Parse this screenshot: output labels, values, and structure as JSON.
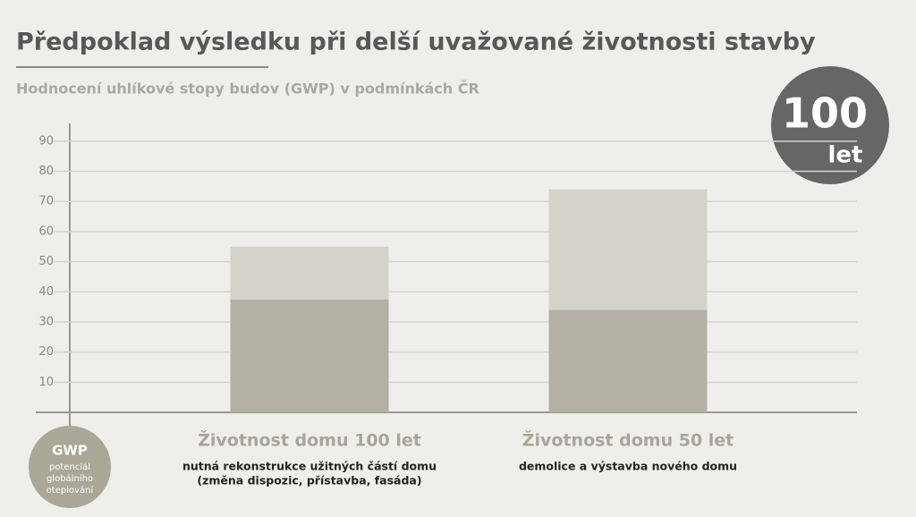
{
  "chart_data": {
    "type": "stacked-bar",
    "title": "Předpoklad výsledku při delší uvažované životnosti stavby",
    "subtitle": "Hodnocení uhlíkové stopy budov (GWP) v podmínkách ČR",
    "badge": {
      "number": "100",
      "unit": "let"
    },
    "axis_badge": {
      "label": "GWP",
      "description": [
        "potenciál",
        "globálního",
        "oteplování"
      ]
    },
    "categories": [
      "Životnost domu 100 let",
      "Životnost domu 50 let"
    ],
    "category_notes": [
      [
        "nutná rekonstrukce užitných částí domu",
        "(změna dispozic, přístavba, fasáda)"
      ],
      [
        "demolice a výstavba nového domu"
      ]
    ],
    "series": [
      {
        "color": "#b4b1a4",
        "values": [
          37.5,
          34
        ]
      },
      {
        "color": "#d4d2cb",
        "values": [
          17.5,
          40
        ]
      }
    ],
    "ylim": [
      0,
      95
    ],
    "yticks": [
      10,
      20,
      30,
      40,
      50,
      60,
      70,
      80,
      90
    ],
    "grid": true
  }
}
